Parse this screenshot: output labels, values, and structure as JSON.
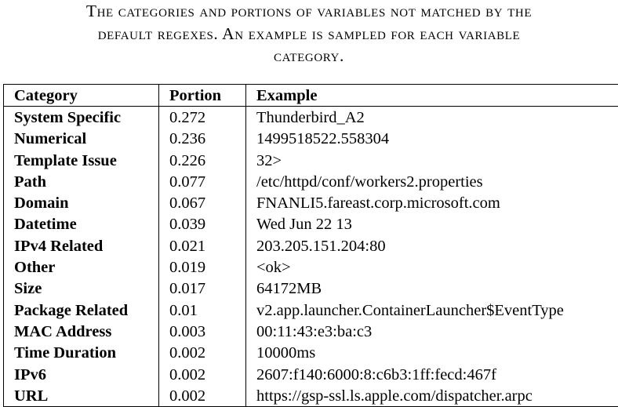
{
  "caption": {
    "lines": [
      "The categories and portions of variables not matched by the",
      "default regexes. An example is sampled for each variable",
      "category."
    ]
  },
  "table": {
    "headers": [
      "Category",
      "Portion",
      "Example"
    ],
    "rows": [
      {
        "category": "System Specific",
        "portion": "0.272",
        "example": "Thunderbird_A2"
      },
      {
        "category": "Numerical",
        "portion": "0.236",
        "example": "1499518522.558304"
      },
      {
        "category": "Template Issue",
        "portion": "0.226",
        "example": "32>"
      },
      {
        "category": "Path",
        "portion": "0.077",
        "example": "/etc/httpd/conf/workers2.properties"
      },
      {
        "category": "Domain",
        "portion": "0.067",
        "example": "FNANLI5.fareast.corp.microsoft.com"
      },
      {
        "category": "Datetime",
        "portion": "0.039",
        "example": "Wed Jun 22 13"
      },
      {
        "category": "IPv4 Related",
        "portion": "0.021",
        "example": "203.205.151.204:80"
      },
      {
        "category": "Other",
        "portion": "0.019",
        "example": "<ok>"
      },
      {
        "category": "Size",
        "portion": "0.017",
        "example": "64172MB"
      },
      {
        "category": "Package Related",
        "portion": "0.01",
        "example": "v2.app.launcher.ContainerLauncher$EventType"
      },
      {
        "category": "MAC Address",
        "portion": "0.003",
        "example": "00:11:43:e3:ba:c3"
      },
      {
        "category": "Time Duration",
        "portion": "0.002",
        "example": "10000ms"
      },
      {
        "category": "IPv6",
        "portion": "0.002",
        "example": "2607:f140:6000:8:c6b3:1ff:fecd:467f"
      },
      {
        "category": "URL",
        "portion": "0.002",
        "example": "https://gsp-ssl.ls.apple.com/dispatcher.arpc"
      }
    ]
  }
}
